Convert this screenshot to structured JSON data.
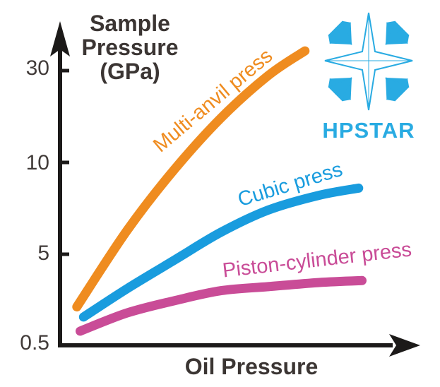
{
  "chart_data": {
    "type": "line",
    "title": "",
    "xlabel": "Oil Pressure",
    "ylabel": "Sample\nPressure\n(GPa)",
    "ylabel_unit": "GPa",
    "grid": false,
    "legend_position": "inline-curve-labels",
    "x_axis": {
      "label": "Oil Pressure",
      "ticks": [],
      "note": "no numeric ticks shown, arrow axis"
    },
    "y_axis": {
      "label": "Sample Pressure (GPa)",
      "scale": "nonlinear-schematic",
      "ticks": [
        {
          "label": "30",
          "value": 30
        },
        {
          "label": "10",
          "value": 10
        },
        {
          "label": "5",
          "value": 5
        },
        {
          "label": "0.5",
          "value": 0.5
        }
      ]
    },
    "series": [
      {
        "name": "Multi-anvil press",
        "color": "#EF8C20",
        "points": [
          {
            "x": 0.05,
            "gpa": 2.4
          },
          {
            "x": 0.2,
            "gpa": 6.3
          },
          {
            "x": 0.34,
            "gpa": 9.6
          },
          {
            "x": 0.48,
            "gpa": 19.7
          },
          {
            "x": 0.62,
            "gpa": 28.9
          },
          {
            "x": 0.73,
            "gpa": 34.3
          }
        ]
      },
      {
        "name": "Cubic press",
        "color": "#199CDE",
        "points": [
          {
            "x": 0.07,
            "gpa": 1.9
          },
          {
            "x": 0.2,
            "gpa": 3.3
          },
          {
            "x": 0.34,
            "gpa": 4.7
          },
          {
            "x": 0.48,
            "gpa": 6.2
          },
          {
            "x": 0.62,
            "gpa": 7.4
          },
          {
            "x": 0.77,
            "gpa": 8.2
          },
          {
            "x": 0.89,
            "gpa": 8.6
          }
        ]
      },
      {
        "name": "Piston-cylinder press",
        "color": "#C94C97",
        "points": [
          {
            "x": 0.06,
            "gpa": 1.2
          },
          {
            "x": 0.2,
            "gpa": 2.1
          },
          {
            "x": 0.34,
            "gpa": 2.7
          },
          {
            "x": 0.48,
            "gpa": 3.2
          },
          {
            "x": 0.62,
            "gpa": 3.4
          },
          {
            "x": 0.77,
            "gpa": 3.6
          },
          {
            "x": 0.9,
            "gpa": 3.7
          }
        ]
      }
    ]
  },
  "logo": {
    "text": "HPSTAR",
    "color": "#29ABE2"
  },
  "colors": {
    "axis": "#1c1a19",
    "text": "#3b3533"
  }
}
